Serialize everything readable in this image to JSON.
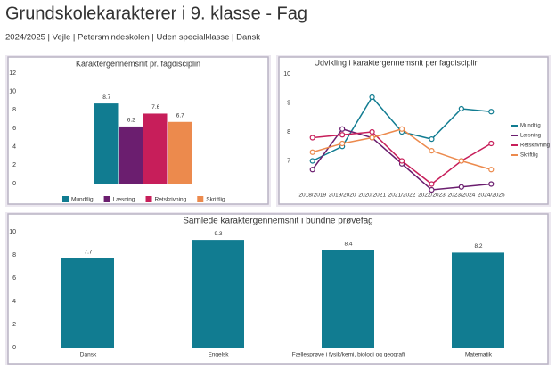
{
  "header": {
    "title": "Grundskolekarakterer i 9. klasse - Fag",
    "subtitle": "2024/2025 | Vejle | Petersmindeskolen | Uden specialklasse | Dansk"
  },
  "chart_data": [
    {
      "type": "bar",
      "title": "Karaktergennemsnit pr. fagdisciplin",
      "categories": [
        null
      ],
      "series": [
        {
          "name": "Mundtlig",
          "color": "#117c91",
          "values": [
            8.7
          ]
        },
        {
          "name": "Læsning",
          "color": "#6b1e6f",
          "values": [
            6.2
          ]
        },
        {
          "name": "Retskrivning",
          "color": "#c71e5a",
          "values": [
            7.6
          ]
        },
        {
          "name": "Skriftlig",
          "color": "#ec8a4d",
          "values": [
            6.7
          ]
        }
      ],
      "ylim": [
        0,
        12
      ],
      "yticks": [
        0,
        2,
        4,
        6,
        8,
        10,
        12
      ],
      "legend": "bottom"
    },
    {
      "type": "line",
      "title": "Udvikling i karaktergennemsnit per fagdisciplin",
      "categories": [
        "2018/2019",
        "2019/2020",
        "2020/2021",
        "2021/2022",
        "2022/2023",
        "2023/2024",
        "2024/2025"
      ],
      "series": [
        {
          "name": "Mundtlig",
          "color": "#117c91",
          "values": [
            7.0,
            7.5,
            9.2,
            8.0,
            7.75,
            8.8,
            8.7
          ]
        },
        {
          "name": "Læsning",
          "color": "#6b1e6f",
          "values": [
            6.7,
            8.1,
            7.8,
            6.9,
            6.0,
            6.1,
            6.2
          ]
        },
        {
          "name": "Retskrivning",
          "color": "#c71e5a",
          "values": [
            7.8,
            7.9,
            8.0,
            7.0,
            6.2,
            7.0,
            7.6
          ]
        },
        {
          "name": "Skriftlig",
          "color": "#ec8a4d",
          "values": [
            7.3,
            7.6,
            7.8,
            8.1,
            7.35,
            7.0,
            6.7
          ]
        }
      ],
      "ylim": [
        6,
        10
      ],
      "yticks": [
        7,
        8,
        9,
        10
      ],
      "legend": "right"
    },
    {
      "type": "bar",
      "title": "Samlede karaktergennemsnit i bundne prøvefag",
      "categories": [
        "Dansk",
        "Engelsk",
        "Fællesprøve i fysik/kemi, biologi og geografi",
        "Matematik"
      ],
      "series": [
        {
          "name": null,
          "color": "#117c91",
          "values": [
            7.7,
            9.3,
            8.4,
            8.2
          ]
        }
      ],
      "ylim": [
        0,
        10
      ],
      "yticks": [
        0,
        2,
        4,
        6,
        8,
        10
      ]
    }
  ]
}
